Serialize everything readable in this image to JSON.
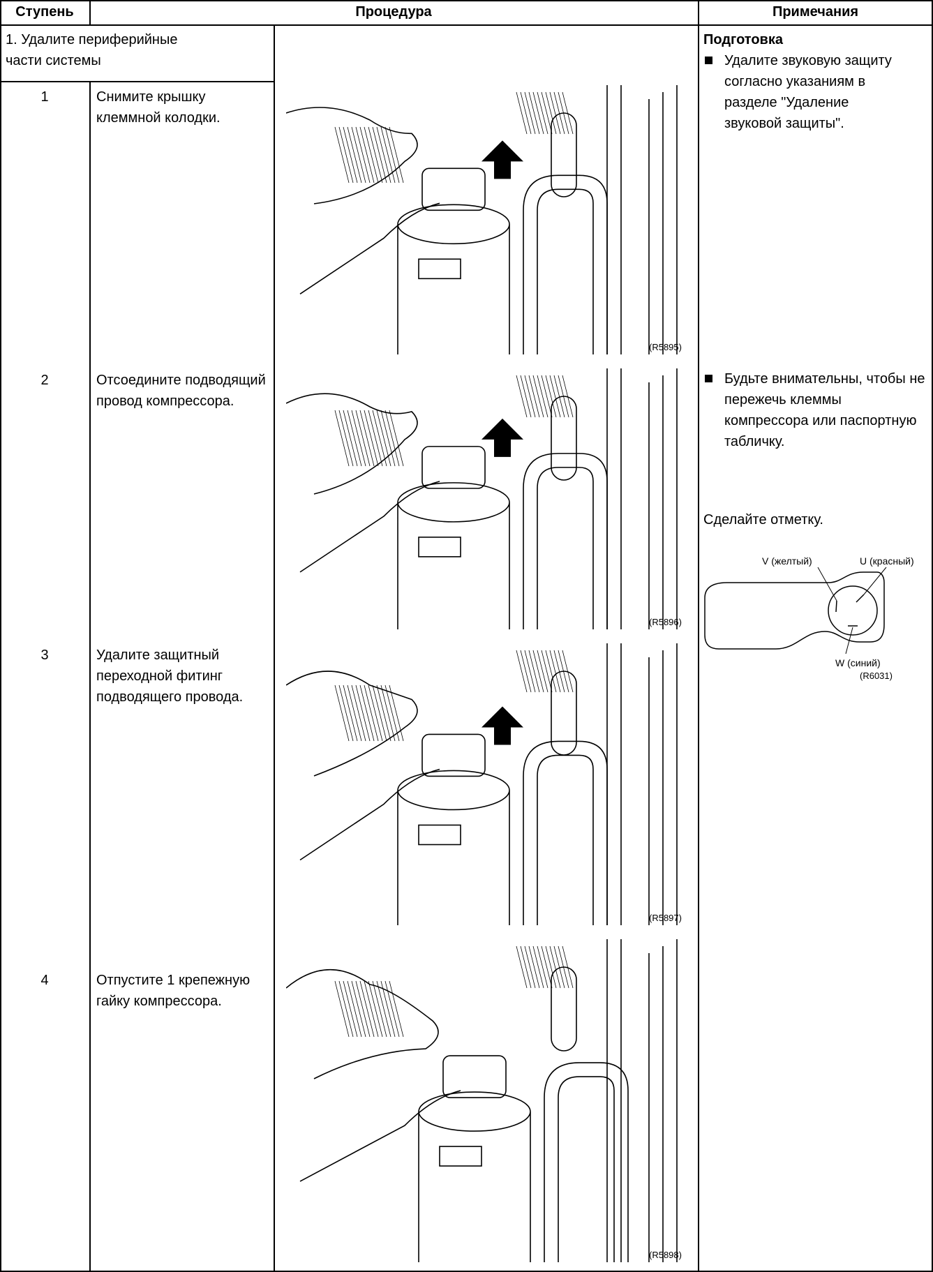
{
  "header": {
    "step": "Ступень",
    "procedure": "Процедура",
    "notes": "Примечания"
  },
  "section": "1. Удалите периферийные части системы",
  "steps": [
    {
      "number": "1",
      "text": "Снимите крышку клеммной колодки.",
      "figure": "(R5895)"
    },
    {
      "number": "2",
      "text": "Отсоедините подводящий провод компрессора.",
      "figure": "(R5896)"
    },
    {
      "number": "3",
      "text": "Удалите защитный переходной фитинг подводящего провода.",
      "figure": "(R5897)"
    },
    {
      "number": "4",
      "text": "Отпустите 1 крепежную гайку компрессора.",
      "figure": "(R5898)"
    }
  ],
  "notes": {
    "title": "Подготовка",
    "items": [
      "Удалите звуковую защиту согласно указаниям в разделе \"Удаление звуковой защиты\".",
      "Будьте внимательны, чтобы не пережечь клеммы компрессора или паспортную табличку."
    ],
    "mark_text": "Сделайте отметку.",
    "diagram": {
      "v_label": "V (желтый)",
      "u_label": "U (красный)",
      "w_label": "W (синий)",
      "code": "(R6031)"
    }
  }
}
